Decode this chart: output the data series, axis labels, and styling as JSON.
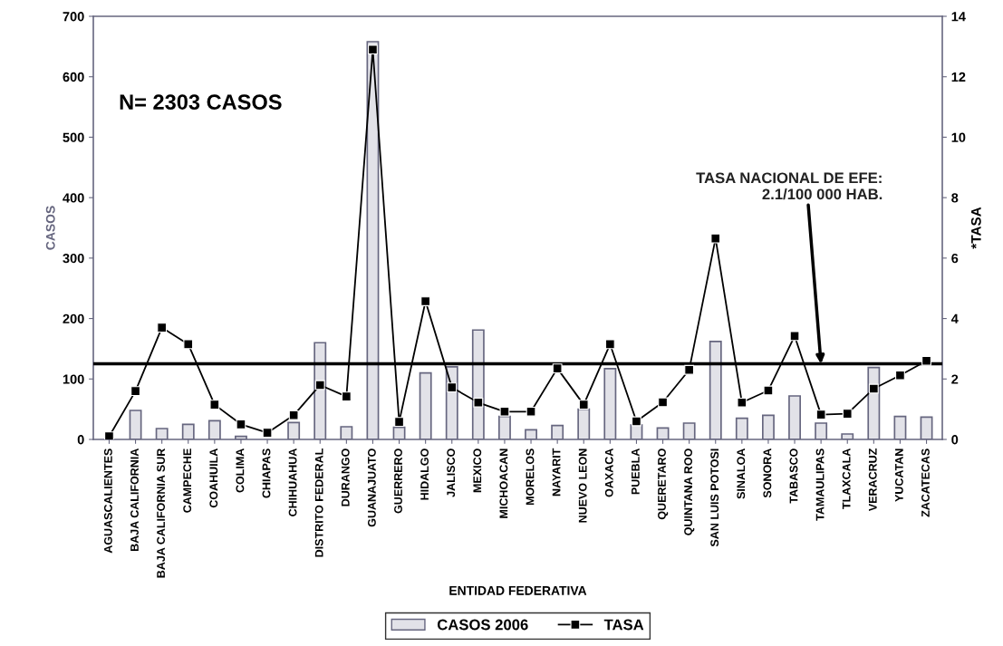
{
  "chart_data": {
    "type": "bar",
    "xlabel": "ENTIDAD FEDERATIVA",
    "ylabel": "CASOS",
    "y2label": "*TASA",
    "categories": [
      "AGUASCALIENTES",
      "BAJA CALIFORNIA",
      "BAJA CALIFORNIA SUR",
      "CAMPECHE",
      "COAHUILA",
      "COLIMA",
      "CHIAPAS",
      "CHIHUAHUA",
      "DISTRITO FEDERAL",
      "DURANGO",
      "GUANAJUATO",
      "GUERRERO",
      "HIDALGO",
      "JALISCO",
      "MEXICO",
      "MICHOACAN",
      "MORELOS",
      "NAYARIT",
      "NUEVO LEON",
      "OAXACA",
      "PUEBLA",
      "QUERETARO",
      "QUINTANA ROO",
      "SAN LUIS POTOSI",
      "SINALOA",
      "SONORA",
      "TABASCO",
      "TAMAULIPAS",
      "TLAXCALA",
      "VERACRUZ",
      "YUCATAN",
      "ZACATECAS"
    ],
    "series": [
      {
        "name": "CASOS 2006",
        "type": "bar",
        "color": "#e2e2e8",
        "values": [
          null,
          48,
          18,
          25,
          31,
          5,
          null,
          28,
          160,
          21,
          658,
          20,
          110,
          120,
          181,
          38,
          16,
          23,
          50,
          117,
          24,
          19,
          27,
          162,
          35,
          40,
          72,
          27,
          9,
          119,
          38,
          37
        ]
      },
      {
        "name": "TASA",
        "type": "line",
        "axis": "y2",
        "color": "#000000",
        "marker": "square",
        "values": [
          0.1,
          1.6,
          3.7,
          3.15,
          1.15,
          0.5,
          0.22,
          0.8,
          1.8,
          1.42,
          12.9,
          0.58,
          4.57,
          1.72,
          1.22,
          0.92,
          0.92,
          2.35,
          1.15,
          3.15,
          0.6,
          1.23,
          2.3,
          6.65,
          1.22,
          1.62,
          3.42,
          0.82,
          0.85,
          1.68,
          2.12,
          2.6
        ]
      }
    ],
    "ylim": [
      0,
      700
    ],
    "yticks": [
      0,
      100,
      200,
      300,
      400,
      500,
      600,
      700
    ],
    "y2lim": [
      0,
      14
    ],
    "y2ticks": [
      0,
      2,
      4,
      6,
      8,
      10,
      12,
      14
    ],
    "ref_lines": [
      {
        "axis": "y2",
        "value": 2.5,
        "color": "#000000"
      }
    ],
    "annotations": [
      "N= 2303 CASOS",
      {
        "text": "TASA NACIONAL DE EFE:\n2.1/100 000 HAB.",
        "x": "TAMAULIPAS",
        "y": 125
      }
    ],
    "legend": "bottom",
    "grid": false
  }
}
